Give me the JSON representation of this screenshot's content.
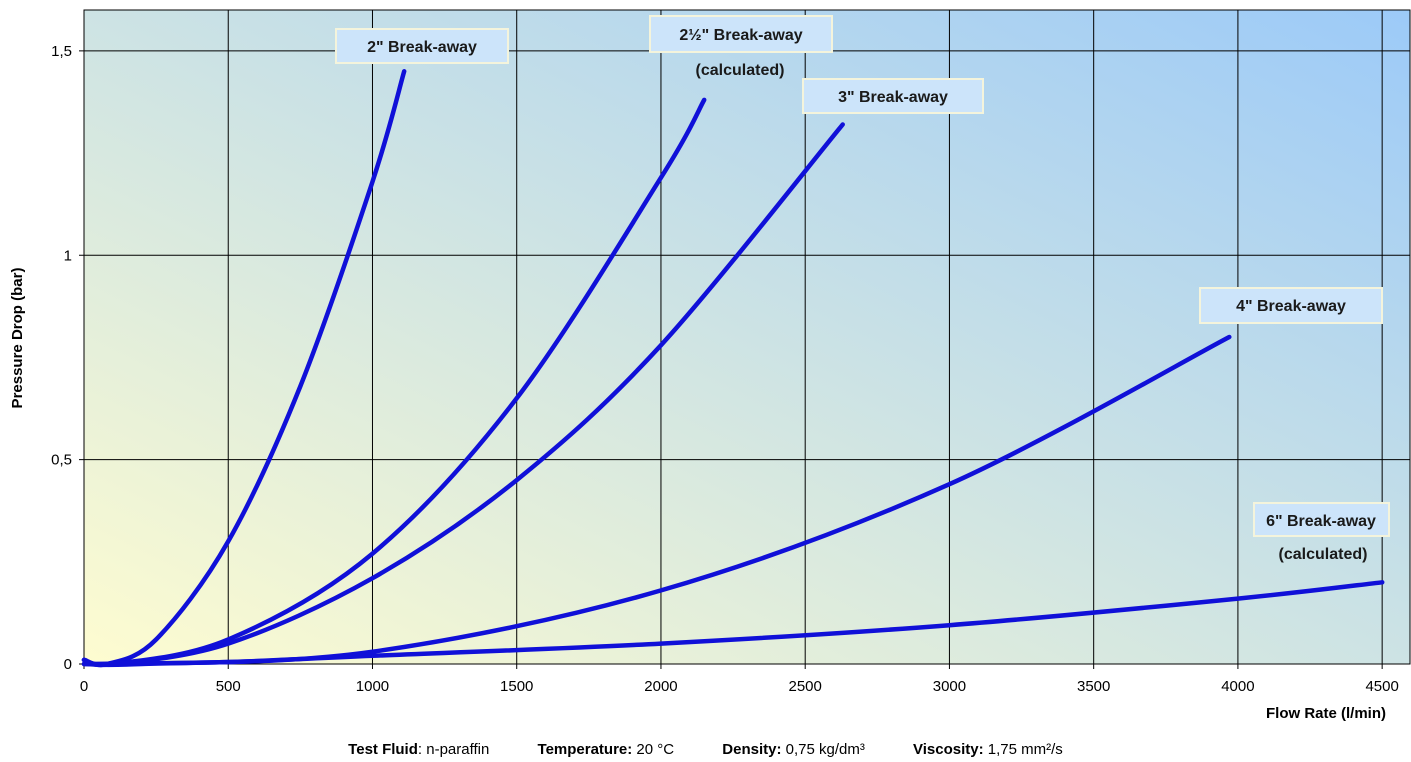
{
  "chart_data": {
    "type": "line",
    "xlabel": "Flow Rate (l/min)",
    "ylabel": "Pressure Drop (bar)",
    "xlim": [
      0,
      4600
    ],
    "ylim": [
      0,
      1.6
    ],
    "x_ticks": [
      0,
      500,
      1000,
      1500,
      2000,
      2500,
      3000,
      3500,
      4000,
      4500
    ],
    "x_tick_labels": [
      "0",
      "500",
      "1000",
      "1500",
      "2000",
      "2500",
      "3000",
      "3500",
      "4000",
      "4500"
    ],
    "y_ticks": [
      0,
      0.5,
      1,
      1.5
    ],
    "y_tick_labels": [
      "0",
      "0,5",
      "1",
      "1,5"
    ],
    "grid": true,
    "background": {
      "gradient_from": "#fefcd0",
      "gradient_to": "#9ccaf8"
    },
    "line_color": "#1010d8",
    "series": [
      {
        "name": "2\" Break-away",
        "x": [
          0,
          80,
          250,
          500,
          750,
          1000,
          1110
        ],
        "y": [
          0.01,
          0,
          0.06,
          0.3,
          0.68,
          1.18,
          1.45
        ]
      },
      {
        "name": "2½\" Break-away (calculated)",
        "x": [
          0,
          100,
          500,
          1000,
          1500,
          2000,
          2150
        ],
        "y": [
          0.01,
          0,
          0.06,
          0.27,
          0.65,
          1.19,
          1.38
        ]
      },
      {
        "name": "3\" Break-away",
        "x": [
          0,
          100,
          500,
          1000,
          1500,
          2000,
          2630
        ],
        "y": [
          0.01,
          0,
          0.05,
          0.21,
          0.45,
          0.78,
          1.32
        ]
      },
      {
        "name": "4\" Break-away",
        "x": [
          0,
          200,
          1000,
          2000,
          3000,
          3970
        ],
        "y": [
          0,
          0,
          0.03,
          0.18,
          0.44,
          0.8
        ]
      },
      {
        "name": "6\" Break-away (calculated)",
        "x": [
          0,
          500,
          1000,
          2000,
          3000,
          4000,
          4500
        ],
        "y": [
          0,
          0.005,
          0.02,
          0.05,
          0.095,
          0.16,
          0.2
        ]
      }
    ],
    "annotations": [
      {
        "lines": [
          "2\" Break-away"
        ]
      },
      {
        "lines": [
          "2½\" Break-away",
          "(calculated)"
        ]
      },
      {
        "lines": [
          "3\" Break-away"
        ]
      },
      {
        "lines": [
          "4\" Break-away"
        ]
      },
      {
        "lines": [
          "6\" Break-away",
          "(calculated)"
        ]
      }
    ]
  },
  "footer": {
    "fluid_key": "Test Fluid",
    "fluid_value": ": n-paraffin",
    "temperature_key": "Temperature:",
    "temperature_value": " 20 °C",
    "density_key": "Density:",
    "density_value": " 0,75 kg/dm³",
    "viscosity_key": "Viscosity:",
    "viscosity_value": " 1,75 mm²/s"
  }
}
